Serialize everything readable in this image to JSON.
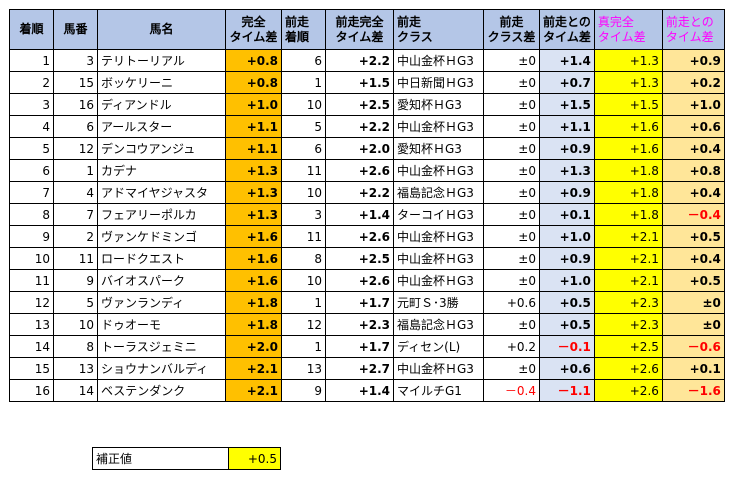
{
  "headers": [
    [
      "着順"
    ],
    [
      "馬番"
    ],
    [
      "馬名"
    ],
    [
      "完全",
      "タイム差"
    ],
    [
      "前走",
      "着順"
    ],
    [
      "前走完全",
      "タイム差"
    ],
    [
      "前走",
      "クラス"
    ],
    [
      "前走",
      "クラス差"
    ],
    [
      "前走との",
      "タイム差"
    ],
    [
      "真完全",
      "タイム差"
    ],
    [
      "前走との",
      "タイム差"
    ]
  ],
  "rows": [
    [
      "1",
      "3",
      "テリトーリアル",
      "+0.8",
      "6",
      "+2.2",
      "中山金杯ＨG3",
      "±0",
      "+1.4",
      "+1.3",
      "+0.9"
    ],
    [
      "2",
      "15",
      "ボッケリーニ",
      "+0.8",
      "1",
      "+1.5",
      "中日新聞ＨG3",
      "±0",
      "+0.7",
      "+1.3",
      "+0.2"
    ],
    [
      "3",
      "16",
      "ディアンドル",
      "+1.0",
      "10",
      "+2.5",
      "愛知杯ＨG3",
      "±0",
      "+1.5",
      "+1.5",
      "+1.0"
    ],
    [
      "4",
      "6",
      "アールスター",
      "+1.1",
      "5",
      "+2.2",
      "中山金杯ＨG3",
      "±0",
      "+1.1",
      "+1.6",
      "+0.6"
    ],
    [
      "5",
      "12",
      "デンコウアンジュ",
      "+1.1",
      "6",
      "+2.0",
      "愛知杯ＨG3",
      "±0",
      "+0.9",
      "+1.6",
      "+0.4"
    ],
    [
      "6",
      "1",
      "カデナ",
      "+1.3",
      "11",
      "+2.6",
      "中山金杯ＨG3",
      "±0",
      "+1.3",
      "+1.8",
      "+0.8"
    ],
    [
      "7",
      "4",
      "アドマイヤジャスタ",
      "+1.3",
      "10",
      "+2.2",
      "福島記念ＨG3",
      "±0",
      "+0.9",
      "+1.8",
      "+0.4"
    ],
    [
      "8",
      "7",
      "フェアリーポルカ",
      "+1.3",
      "3",
      "+1.4",
      "ターコイＨG3",
      "±0",
      "+0.1",
      "+1.8",
      "－0.4"
    ],
    [
      "9",
      "2",
      "ヴァンケドミンゴ",
      "+1.6",
      "11",
      "+2.6",
      "中山金杯ＨG3",
      "±0",
      "+1.0",
      "+2.1",
      "+0.5"
    ],
    [
      "10",
      "11",
      "ロードクエスト",
      "+1.6",
      "8",
      "+2.5",
      "中山金杯ＨG3",
      "±0",
      "+0.9",
      "+2.1",
      "+0.4"
    ],
    [
      "11",
      "9",
      "バイオスパーク",
      "+1.6",
      "10",
      "+2.6",
      "中山金杯ＨG3",
      "±0",
      "+1.0",
      "+2.1",
      "+0.5"
    ],
    [
      "12",
      "5",
      "ヴァンランディ",
      "+1.8",
      "1",
      "+1.7",
      "元町Ｓ･3勝",
      "+0.6",
      "+0.5",
      "+2.3",
      "±0"
    ],
    [
      "13",
      "10",
      "ドゥオーモ",
      "+1.8",
      "12",
      "+2.3",
      "福島記念ＨG3",
      "±0",
      "+0.5",
      "+2.3",
      "±0"
    ],
    [
      "14",
      "8",
      "トーラスジェミニ",
      "+2.0",
      "1",
      "+1.7",
      "ディセン(L)",
      "+0.2",
      "－0.1",
      "+2.5",
      "－0.6"
    ],
    [
      "15",
      "13",
      "ショウナンバルディ",
      "+2.1",
      "13",
      "+2.7",
      "中山金杯ＨG3",
      "±0",
      "+0.6",
      "+2.6",
      "+0.1"
    ],
    [
      "16",
      "14",
      "ベステンダンク",
      "+2.1",
      "9",
      "+1.4",
      "マイルチG1",
      "－0.4",
      "－1.1",
      "+2.6",
      "－1.6"
    ]
  ],
  "correction": {
    "label": "補正値",
    "value": "+0.5"
  },
  "colors": {
    "header_blue": "#b4c6e7",
    "orange": "#ffc000",
    "lavender": "#dae3f3",
    "yellow": "#ffff00",
    "peach": "#ffe699",
    "magenta_text": "#ff00ff",
    "negative_red": "#ff0000"
  }
}
